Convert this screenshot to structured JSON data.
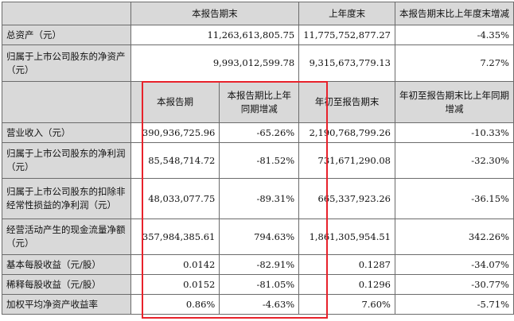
{
  "top_table": {
    "headers": [
      "本报告期末",
      "上年度末",
      "本报告期末比上年度末增减"
    ],
    "rows": [
      {
        "label": "总资产（元）",
        "values": [
          "11,263,613,805.75",
          "11,775,752,877.27",
          "-4.35%"
        ]
      },
      {
        "label": "归属于上市公司股东的净资产（元）",
        "values": [
          "9,993,012,599.78",
          "9,315,673,779.13",
          "7.27%"
        ]
      }
    ]
  },
  "bottom_table": {
    "headers": [
      "本报告期",
      "本报告期比上年同期增减",
      "年初至报告期末",
      "年初至报告期末比上年同期增减"
    ],
    "rows": [
      {
        "label": "营业收入（元）",
        "values": [
          "390,936,725.96",
          "-65.26%",
          "2,190,768,799.26",
          "-10.33%"
        ]
      },
      {
        "label": "归属于上市公司股东的净利润（元）",
        "values": [
          "85,548,714.72",
          "-81.52%",
          "731,671,290.08",
          "-32.30%"
        ]
      },
      {
        "label": "归属于上市公司股东的扣除非经常性损益的净利润（元）",
        "values": [
          "48,033,077.75",
          "-89.31%",
          "665,337,923.26",
          "-36.15%"
        ]
      },
      {
        "label": "经营活动产生的现金流量净额（元）",
        "values": [
          "357,984,385.61",
          "794.63%",
          "1,861,305,954.51",
          "342.26%"
        ]
      },
      {
        "label": "基本每股收益（元/股）",
        "values": [
          "0.0142",
          "-82.91%",
          "0.1287",
          "-34.07%"
        ]
      },
      {
        "label": "稀释每股收益（元/股）",
        "values": [
          "0.0152",
          "-81.05%",
          "0.1296",
          "-30.77%"
        ]
      },
      {
        "label": "加权平均净资产收益率",
        "values": [
          "0.86%",
          "-4.63%",
          "7.60%",
          "-5.71%"
        ]
      }
    ]
  },
  "colors": {
    "header_bg": "#d9d9d9",
    "grid": "#6b6b6b",
    "highlight_border": "#e8222b"
  }
}
